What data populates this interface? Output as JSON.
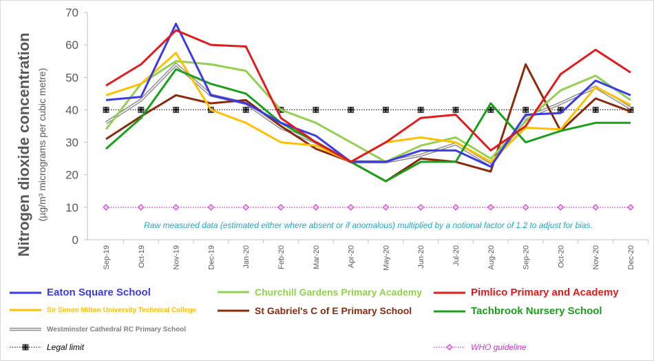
{
  "chart_data": {
    "type": "line",
    "ylabel": "Nitrogen dioxide concentration",
    "ylabel_unit": "(µg/m³ micrograms per cubic metre)",
    "ylim": [
      0,
      70
    ],
    "yticks": [
      0,
      10,
      20,
      30,
      40,
      50,
      60,
      70
    ],
    "categories": [
      "Sep-19",
      "Oct-19",
      "Nov-19",
      "Dec-19",
      "Jan-20",
      "Feb-20",
      "Mar-20",
      "Apr-20",
      "May-20",
      "Jun-20",
      "Jul-20",
      "Aug-20",
      "Sep-20",
      "Oct-20",
      "Nov-20",
      "Dec-20"
    ],
    "annotation": "Raw measured data (estimated either where absent or if anomalous) multiplied by a notional factor of 1.2 to adjust for bias.",
    "grid": false,
    "legend_position": "bottom",
    "series": [
      {
        "name": "Eaton Square School",
        "color": "#3a3ae8",
        "style": "solid",
        "values": [
          43,
          44,
          66.5,
          44.5,
          42,
          36,
          32,
          24,
          24,
          27.5,
          27.5,
          22.5,
          38.5,
          39,
          49,
          44.5
        ]
      },
      {
        "name": "Churchill Gardens Primary Academy",
        "color": "#92d050",
        "style": "solid",
        "values": [
          34,
          48,
          55,
          54,
          52,
          40,
          36,
          30,
          24,
          29,
          31.5,
          25,
          36.5,
          46,
          50.5,
          43
        ]
      },
      {
        "name": "Pimlico Primary and Academy",
        "color": "#e31a1c",
        "style": "solid",
        "values": [
          47.5,
          54,
          64.5,
          60,
          59.5,
          37.5,
          30,
          24,
          30,
          37.5,
          38.5,
          27.5,
          35,
          51,
          58.5,
          51.5
        ]
      },
      {
        "name": "Sir Simon Milton University Technical College",
        "color": "#ffc000",
        "style": "solid",
        "values": [
          44.5,
          48,
          57.5,
          40,
          36,
          30,
          29,
          24,
          30,
          31.5,
          30,
          24,
          34.5,
          34,
          47,
          41.5
        ]
      },
      {
        "name": "St Gabriel's C of E Primary School",
        "color": "#8b2a0a",
        "style": "solid",
        "values": [
          31,
          38,
          44.5,
          42,
          43,
          35,
          28,
          24,
          18,
          25,
          24,
          21,
          54,
          33.5,
          43.5,
          39.5
        ]
      },
      {
        "name": "Tachbrook Nursery School",
        "color": "#19a019",
        "style": "solid",
        "values": [
          28,
          37.5,
          52.5,
          48,
          45,
          36,
          30,
          24,
          18,
          24,
          24,
          42,
          30,
          33.5,
          36,
          36
        ]
      },
      {
        "name": "Westminster Cathedral RC Primary School",
        "color": "#8c8c8c",
        "style": "double",
        "values": [
          36,
          43,
          54,
          44.5,
          42,
          34.5,
          30,
          24,
          24,
          26,
          29.5,
          23,
          37.5,
          42,
          47,
          40.5
        ]
      },
      {
        "name": "Legal limit",
        "color": "#222222",
        "style": "dotted-marker",
        "values": [
          40,
          40,
          40,
          40,
          40,
          40,
          40,
          40,
          40,
          40,
          40,
          40,
          40,
          40,
          40,
          40
        ]
      },
      {
        "name": "WHO guideline",
        "color": "#cc33cc",
        "style": "dotted-diamond",
        "values": [
          10,
          10,
          10,
          10,
          10,
          10,
          10,
          10,
          10,
          10,
          10,
          10,
          10,
          10,
          10,
          10
        ]
      }
    ]
  }
}
